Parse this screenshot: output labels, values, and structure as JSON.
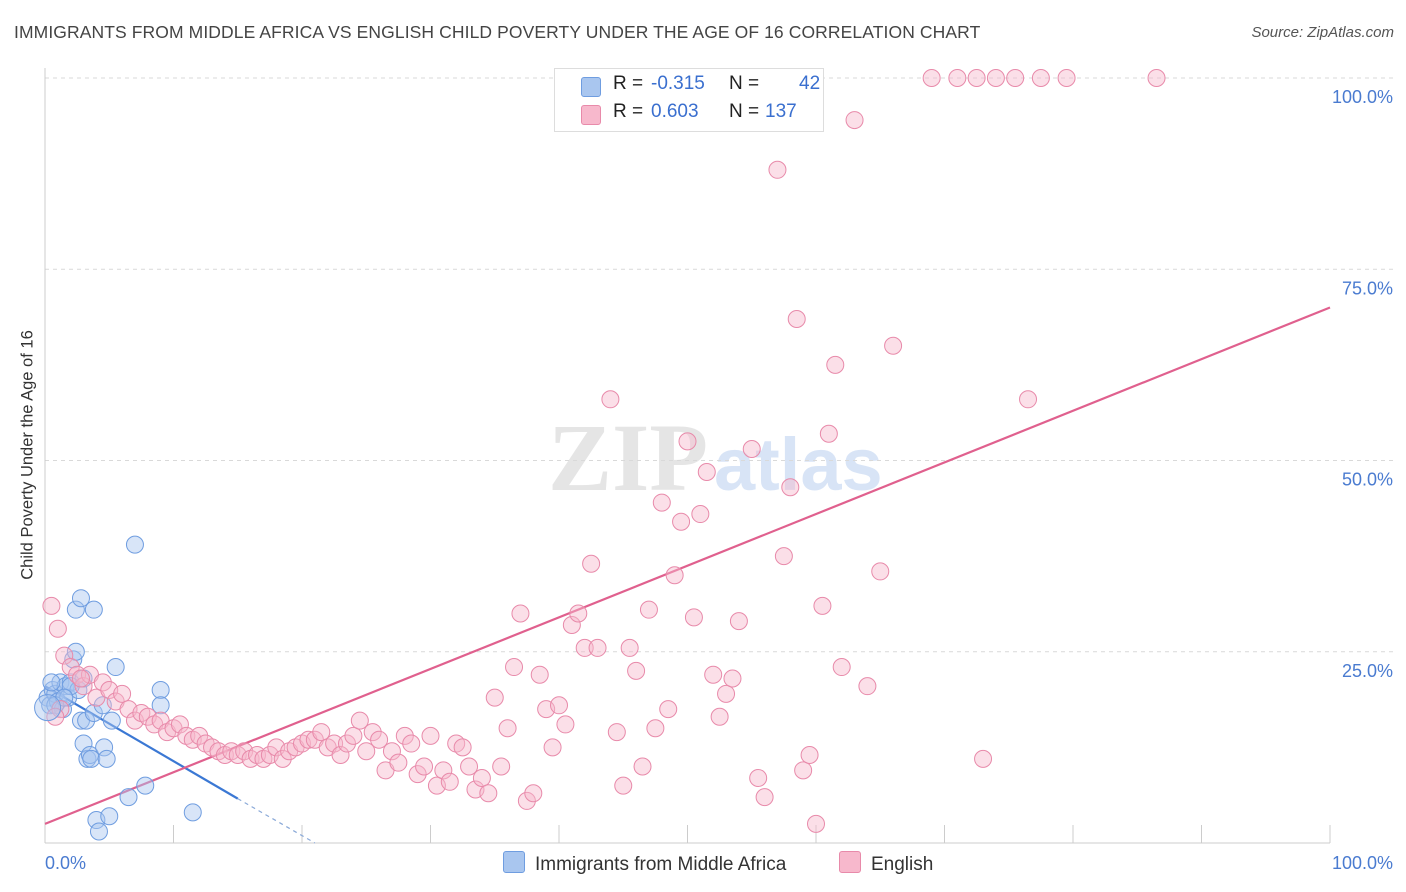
{
  "title": "IMMIGRANTS FROM MIDDLE AFRICA VS ENGLISH CHILD POVERTY UNDER THE AGE OF 16 CORRELATION CHART",
  "source": "Source: ZipAtlas.com",
  "watermark": {
    "zip": "ZIP",
    "atlas": "atlas"
  },
  "legend": {
    "rows": [
      {
        "r_label": "R =",
        "r_value": "-0.315",
        "n_label": "N =",
        "n_value": "42",
        "color": "#a9c6ef",
        "border": "#6f9de0"
      },
      {
        "r_label": "R =",
        "r_value": "0.603",
        "n_label": "N =",
        "n_value": "137",
        "color": "#f7b8cc",
        "border": "#e88aaa"
      }
    ]
  },
  "bottom_legend": [
    {
      "label": "Immigrants from Middle Africa",
      "color": "#a9c6ef",
      "border": "#6f9de0"
    },
    {
      "label": "English",
      "color": "#f7b8cc",
      "border": "#e88aaa"
    }
  ],
  "chart_data": {
    "type": "scatter",
    "title": "IMMIGRANTS FROM MIDDLE AFRICA VS ENGLISH CHILD POVERTY UNDER THE AGE OF 16 CORRELATION CHART",
    "xlabel": "",
    "ylabel": "Child Poverty Under the Age of 16",
    "xlim": [
      0,
      100
    ],
    "ylim": [
      0,
      100
    ],
    "x_tick_labels": [
      {
        "value": 0,
        "label": "0.0%"
      },
      {
        "value": 100,
        "label": "100.0%"
      }
    ],
    "y_tick_labels": [
      {
        "value": 25,
        "label": "25.0%"
      },
      {
        "value": 50,
        "label": "50.0%"
      },
      {
        "value": 75,
        "label": "75.0%"
      },
      {
        "value": 100,
        "label": "100.0%"
      }
    ],
    "series": [
      {
        "name": "Immigrants from Middle Africa",
        "color": "#a9c6ef",
        "stroke": "#6f9de0",
        "trend": {
          "x0": 0,
          "y0": 20.5,
          "x1": 15,
          "y1": 5.8,
          "dash_to_x": 21,
          "dash_to_y": 0,
          "color": "#3b78d4"
        },
        "points": [
          [
            0.2,
            19.0
          ],
          [
            0.4,
            18.0
          ],
          [
            0.6,
            20.0
          ],
          [
            0.8,
            19.5
          ],
          [
            1.0,
            18.5
          ],
          [
            1.2,
            21.0
          ],
          [
            1.4,
            17.5
          ],
          [
            1.6,
            20.5
          ],
          [
            1.8,
            19.0
          ],
          [
            2.0,
            21.0
          ],
          [
            2.2,
            24.0
          ],
          [
            2.4,
            25.0
          ],
          [
            2.6,
            20.0
          ],
          [
            2.8,
            16.0
          ],
          [
            3.0,
            21.5
          ],
          [
            3.2,
            16.0
          ],
          [
            3.0,
            13.0
          ],
          [
            3.3,
            11.0
          ],
          [
            3.5,
            11.5
          ],
          [
            3.6,
            11.0
          ],
          [
            3.8,
            17.0
          ],
          [
            4.0,
            3.0
          ],
          [
            4.2,
            1.5
          ],
          [
            4.5,
            18.0
          ],
          [
            4.6,
            12.5
          ],
          [
            4.8,
            11.0
          ],
          [
            5.2,
            16.0
          ],
          [
            5.0,
            3.5
          ],
          [
            5.5,
            23.0
          ],
          [
            6.5,
            6.0
          ],
          [
            7.0,
            39.0
          ],
          [
            7.8,
            7.5
          ],
          [
            9.0,
            20.0
          ],
          [
            9.0,
            18.0
          ],
          [
            11.5,
            4.0
          ],
          [
            2.4,
            30.5
          ],
          [
            2.8,
            32.0
          ],
          [
            3.8,
            30.5
          ],
          [
            0.8,
            18.0
          ],
          [
            0.5,
            21.0
          ],
          [
            2.0,
            20.5
          ],
          [
            1.5,
            19.0
          ]
        ]
      },
      {
        "name": "English",
        "color": "#f7b8cc",
        "stroke": "#e88aaa",
        "trend": {
          "x0": 0,
          "y0": 2.5,
          "x1": 100,
          "y1": 70.0,
          "color": "#e0608e"
        },
        "points": [
          [
            0.5,
            31.0
          ],
          [
            1.0,
            28.0
          ],
          [
            1.5,
            24.5
          ],
          [
            2.0,
            23.0
          ],
          [
            2.5,
            22.0
          ],
          [
            3.0,
            20.5
          ],
          [
            3.5,
            22.0
          ],
          [
            4.0,
            19.0
          ],
          [
            4.5,
            21.0
          ],
          [
            5.0,
            20.0
          ],
          [
            5.5,
            18.5
          ],
          [
            6.0,
            19.5
          ],
          [
            6.5,
            17.5
          ],
          [
            7.0,
            16.0
          ],
          [
            7.5,
            17.0
          ],
          [
            8.0,
            16.5
          ],
          [
            8.5,
            15.5
          ],
          [
            9.0,
            16.0
          ],
          [
            9.5,
            14.5
          ],
          [
            10.0,
            15.0
          ],
          [
            10.5,
            15.5
          ],
          [
            11.0,
            14.0
          ],
          [
            11.5,
            13.5
          ],
          [
            12.0,
            14.0
          ],
          [
            12.5,
            13.0
          ],
          [
            13.0,
            12.5
          ],
          [
            13.5,
            12.0
          ],
          [
            14.0,
            11.5
          ],
          [
            14.5,
            12.0
          ],
          [
            15.0,
            11.5
          ],
          [
            15.5,
            12.0
          ],
          [
            16.0,
            11.0
          ],
          [
            16.5,
            11.5
          ],
          [
            17.0,
            11.0
          ],
          [
            17.5,
            11.5
          ],
          [
            18.0,
            12.5
          ],
          [
            18.5,
            11.0
          ],
          [
            19.0,
            12.0
          ],
          [
            19.5,
            12.5
          ],
          [
            20.0,
            13.0
          ],
          [
            20.5,
            13.5
          ],
          [
            21.0,
            13.5
          ],
          [
            21.5,
            14.5
          ],
          [
            22.0,
            12.5
          ],
          [
            22.5,
            13.0
          ],
          [
            23.0,
            11.5
          ],
          [
            23.5,
            13.0
          ],
          [
            24.0,
            14.0
          ],
          [
            24.5,
            16.0
          ],
          [
            25.0,
            12.0
          ],
          [
            25.5,
            14.5
          ],
          [
            26.0,
            13.5
          ],
          [
            26.5,
            9.5
          ],
          [
            27.0,
            12.0
          ],
          [
            27.5,
            10.5
          ],
          [
            28.0,
            14.0
          ],
          [
            28.5,
            13.0
          ],
          [
            29.0,
            9.0
          ],
          [
            29.5,
            10.0
          ],
          [
            30.0,
            14.0
          ],
          [
            30.5,
            7.5
          ],
          [
            31.0,
            9.5
          ],
          [
            31.5,
            8.0
          ],
          [
            32.0,
            13.0
          ],
          [
            32.5,
            12.5
          ],
          [
            33.0,
            10.0
          ],
          [
            33.5,
            7.0
          ],
          [
            34.0,
            8.5
          ],
          [
            34.5,
            6.5
          ],
          [
            35.0,
            19.0
          ],
          [
            35.5,
            10.0
          ],
          [
            36.0,
            15.0
          ],
          [
            36.5,
            23.0
          ],
          [
            37.0,
            30.0
          ],
          [
            37.5,
            5.5
          ],
          [
            38.0,
            6.5
          ],
          [
            38.5,
            22.0
          ],
          [
            39.0,
            17.5
          ],
          [
            39.5,
            12.5
          ],
          [
            40.0,
            18.0
          ],
          [
            40.5,
            15.5
          ],
          [
            41.0,
            28.5
          ],
          [
            41.5,
            30.0
          ],
          [
            42.0,
            25.5
          ],
          [
            42.5,
            36.5
          ],
          [
            43.0,
            25.5
          ],
          [
            44.0,
            58.0
          ],
          [
            44.5,
            14.5
          ],
          [
            45.0,
            7.5
          ],
          [
            45.5,
            25.5
          ],
          [
            46.0,
            22.5
          ],
          [
            46.5,
            10.0
          ],
          [
            47.0,
            30.5
          ],
          [
            47.5,
            15.0
          ],
          [
            48.0,
            44.5
          ],
          [
            48.5,
            17.5
          ],
          [
            49.0,
            35.0
          ],
          [
            49.5,
            42.0
          ],
          [
            50.0,
            52.5
          ],
          [
            50.5,
            29.5
          ],
          [
            51.0,
            43.0
          ],
          [
            51.5,
            48.5
          ],
          [
            52.0,
            22.0
          ],
          [
            52.5,
            16.5
          ],
          [
            53.0,
            19.5
          ],
          [
            53.5,
            21.5
          ],
          [
            54.0,
            29.0
          ],
          [
            55.0,
            51.5
          ],
          [
            55.5,
            8.5
          ],
          [
            56.0,
            6.0
          ],
          [
            57.0,
            88.0
          ],
          [
            57.5,
            37.5
          ],
          [
            58.0,
            46.5
          ],
          [
            58.5,
            68.5
          ],
          [
            59.0,
            9.5
          ],
          [
            59.5,
            11.5
          ],
          [
            60.0,
            2.5
          ],
          [
            60.5,
            31.0
          ],
          [
            61.0,
            53.5
          ],
          [
            61.5,
            62.5
          ],
          [
            62.0,
            23.0
          ],
          [
            63.0,
            94.5
          ],
          [
            64.0,
            20.5
          ],
          [
            65.0,
            35.5
          ],
          [
            66.0,
            65.0
          ],
          [
            69.0,
            100.0
          ],
          [
            71.0,
            100.0
          ],
          [
            72.5,
            100.0
          ],
          [
            74.0,
            100.0
          ],
          [
            75.5,
            100.0
          ],
          [
            77.5,
            100.0
          ],
          [
            79.5,
            100.0
          ],
          [
            86.5,
            100.0
          ],
          [
            76.5,
            58.0
          ],
          [
            73.0,
            11.0
          ],
          [
            1.2,
            17.5
          ],
          [
            0.8,
            16.5
          ],
          [
            2.8,
            21.5
          ]
        ]
      }
    ]
  }
}
